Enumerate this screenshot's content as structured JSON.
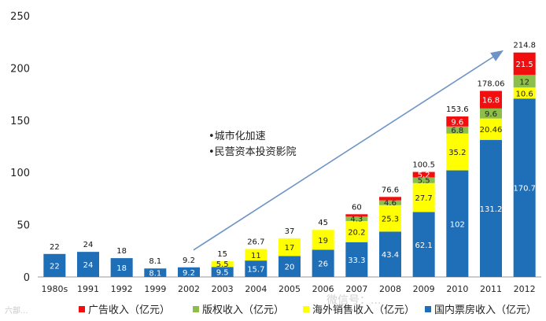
{
  "chart_data": {
    "type": "bar",
    "stacked": true,
    "categories": [
      "1980s",
      "1991",
      "1992",
      "1999",
      "2002",
      "2003",
      "2004",
      "2005",
      "2006",
      "2007",
      "2008",
      "2009",
      "2010",
      "2011",
      "2012"
    ],
    "series": [
      {
        "name": "国内票房收入（亿元）",
        "color": "#1F6EB8",
        "values": [
          22,
          24,
          18,
          8.1,
          9.2,
          9.5,
          15.7,
          20,
          26,
          33.3,
          43.4,
          62.1,
          102,
          131.2,
          170.7
        ],
        "labels": [
          "22",
          "24",
          "18",
          "8.1",
          "9.2",
          "9.5",
          "15.7",
          "20",
          "26",
          "33.3",
          "43.4",
          "62.1",
          "102",
          "131.2",
          "170.7"
        ]
      },
      {
        "name": "海外销售收入（亿元）",
        "color": "#FFFF00",
        "values": [
          0,
          0,
          0,
          0,
          0,
          5.5,
          11,
          17,
          19,
          20.2,
          25.3,
          27.7,
          35.2,
          20.46,
          10.6
        ],
        "labels": [
          "",
          "",
          "",
          "",
          "",
          "5.5",
          "11",
          "17",
          "19",
          "20.2",
          "25.3",
          "27.7",
          "35.2",
          "20.46",
          "10.6"
        ]
      },
      {
        "name": "版权收入（亿元）",
        "color": "#8DBE4C",
        "values": [
          0,
          0,
          0,
          0,
          0,
          0,
          0,
          0,
          0,
          4.3,
          4.6,
          5.5,
          6.8,
          9.6,
          12
        ],
        "labels": [
          "",
          "",
          "",
          "",
          "",
          "",
          "",
          "",
          "",
          "4.3",
          "4.6",
          "5.5",
          "6.8",
          "9.6",
          "12"
        ]
      },
      {
        "name": "广告收入（亿元）",
        "color": "#F20E0E",
        "values": [
          0,
          0,
          0,
          0,
          0,
          0,
          0,
          0,
          0,
          2.2,
          3.3,
          5.2,
          9.6,
          16.8,
          21.5
        ],
        "labels": [
          "",
          "",
          "",
          "",
          "",
          "",
          "",
          "",
          "",
          "",
          "",
          "5.2",
          "9.6",
          "16.8",
          "21.5"
        ]
      }
    ],
    "totals": [
      "22",
      "24",
      "18",
      "8.1",
      "9.2",
      "15",
      "26.7",
      "37",
      "45",
      "60",
      "76.6",
      "100.5",
      "153.6",
      "178.06",
      "214.8"
    ],
    "y_ticks": [
      "0",
      "50",
      "100",
      "150",
      "200",
      "250"
    ],
    "ylim": [
      0,
      250
    ],
    "annotations": [
      "•城市化加速",
      "•民营资本投资影院"
    ],
    "legend_order": [
      "广告收入（亿元）",
      "版权收入（亿元）",
      "海外销售收入（亿元）",
      "国内票房收入（亿元）"
    ],
    "trend_arrow": {
      "from_index": 4,
      "to_index": 14
    }
  },
  "watermark": {
    "left": "六部...",
    "right": "微信号：..."
  }
}
